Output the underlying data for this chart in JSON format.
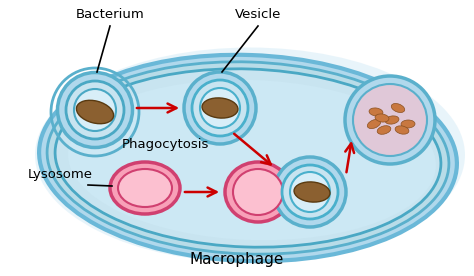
{
  "labels": {
    "bacterium": "Bacterium",
    "vesicle": "Vesicle",
    "phagocytosis": "Phagocytosis",
    "lysosome": "Lysosome",
    "macrophage": "Macrophage"
  },
  "colors": {
    "background": "#ffffff",
    "cell_shadow": "#c8e8f4",
    "cell_outer_fill": "#a8d8ec",
    "cell_outer_edge": "#5ab0cc",
    "cell_inner_fill": "#b8dce8",
    "cell_inner_edge": "#4aa0bc",
    "cytoplasm_fill": "#cce8f4",
    "cytoplasm_edge": "#4aa0bc",
    "vesicle_outer_fill": "#b8dce8",
    "vesicle_outer_edge": "#4aa0bc",
    "vesicle_inner_fill": "#d8eef8",
    "bact_fill": "#8B6030",
    "bact_edge": "#5a3a10",
    "lyso_outer_fill": "#f8a0b8",
    "lyso_outer_edge": "#d04070",
    "lyso_inner_fill": "#fcc0d0",
    "digested_fill": "#c87840",
    "digested_edge": "#8a5020",
    "exo_fill": "#e8c8d8",
    "exo_edge": "#4aa0bc",
    "arrow_color": "#cc0000"
  },
  "figsize": [
    4.74,
    2.76
  ],
  "dpi": 100
}
